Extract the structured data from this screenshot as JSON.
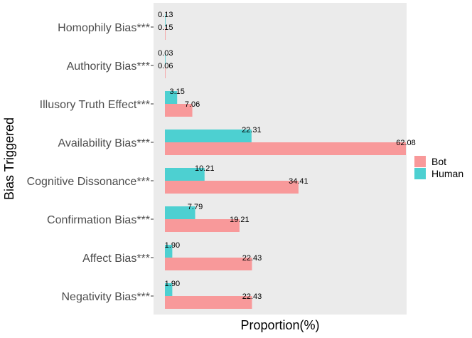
{
  "chart_data": {
    "type": "bar",
    "orientation": "horizontal",
    "xlabel": "Proportion(%)",
    "ylabel": "Bias Triggered",
    "xlim": [
      0,
      65
    ],
    "categories": [
      "Homophily Bias***",
      "Authority Bias***",
      "Illusory Truth Effect***",
      "Availability Bias***",
      "Cognitive Dissonance***",
      "Confirmation Bias***",
      "Affect Bias***",
      "Negativity Bias***"
    ],
    "series": [
      {
        "name": "Human",
        "color": "#4dd0d1",
        "values": [
          0.13,
          0.03,
          3.15,
          22.31,
          10.21,
          7.79,
          1.9,
          1.9
        ],
        "labels": [
          "0.13",
          "0.03",
          "3.15",
          "22.31",
          "10.21",
          "7.79",
          "1.90",
          "1.90"
        ]
      },
      {
        "name": "Bot",
        "color": "#f8999a",
        "values": [
          0.15,
          0.06,
          7.06,
          62.08,
          34.41,
          19.21,
          22.43,
          22.43
        ],
        "labels": [
          "0.15",
          "0.06",
          "7.06",
          "62.08",
          "34.41",
          "19.21",
          "22.43",
          "22.43"
        ]
      }
    ],
    "legend": {
      "position": "right",
      "order": [
        "Bot",
        "Human"
      ]
    },
    "grid": false,
    "panel_background": "#ebebeb"
  }
}
